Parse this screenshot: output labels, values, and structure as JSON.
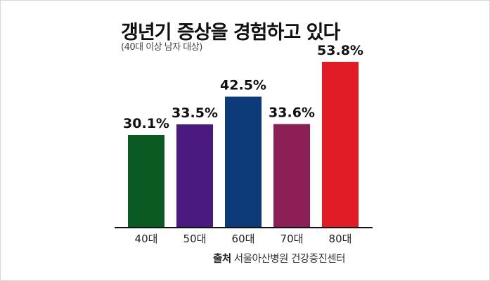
{
  "title": "갱년기 증상을 경험하고 있다",
  "subtitle": "(40대 이상 남자 대상)",
  "source": {
    "label": "출처",
    "text": "서울아산병원 건강증진센터"
  },
  "chart_data": {
    "type": "bar",
    "categories": [
      "40대",
      "50대",
      "60대",
      "70대",
      "80대"
    ],
    "values": [
      30.1,
      33.5,
      42.5,
      33.6,
      53.8
    ],
    "value_labels": [
      "30.1%",
      "33.5%",
      "42.5%",
      "33.6%",
      "53.8%"
    ],
    "colors": [
      "#0b5a24",
      "#4a1a80",
      "#0d3a78",
      "#8c1f55",
      "#e21c27"
    ],
    "title": "갱년기 증상을 경험하고 있다",
    "subtitle": "(40대 이상 남자 대상)",
    "xlabel": "",
    "ylabel": "",
    "ylim": [
      0,
      60
    ],
    "grid": false
  }
}
